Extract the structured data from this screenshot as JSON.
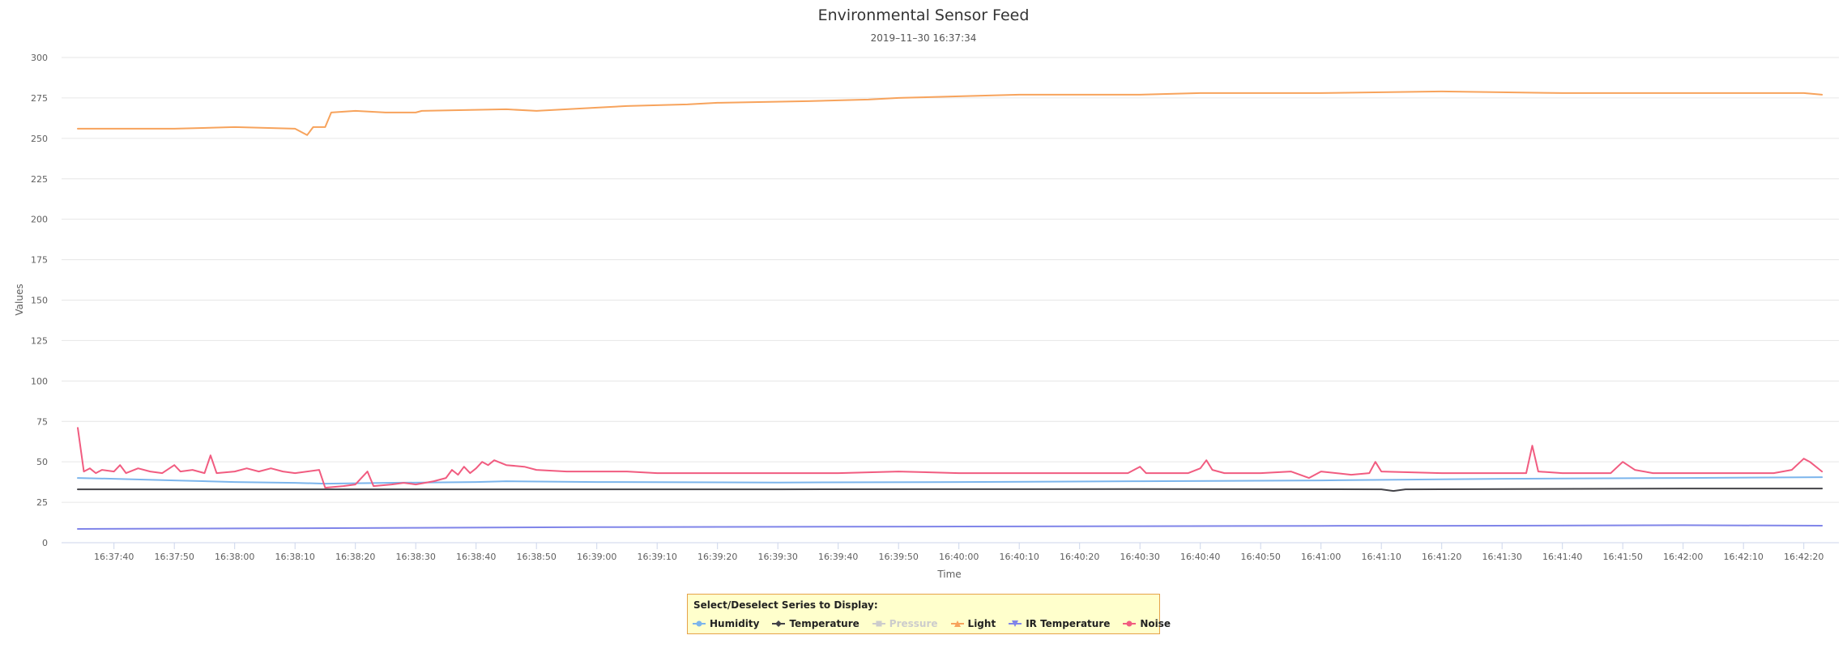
{
  "chart_data": {
    "type": "line",
    "title": "Environmental Sensor Feed",
    "subtitle": "2019–11–30 16:37:34",
    "xlabel": "Time",
    "ylabel": "Values",
    "ylim": [
      0,
      300
    ],
    "yticks": [
      0,
      25,
      50,
      75,
      100,
      125,
      150,
      175,
      200,
      225,
      250,
      275,
      300
    ],
    "xlim": [
      "16:37:34",
      "16:42:23"
    ],
    "xticks": [
      "16:37:40",
      "16:37:50",
      "16:38:00",
      "16:38:10",
      "16:38:20",
      "16:38:30",
      "16:38:40",
      "16:38:50",
      "16:39:00",
      "16:39:10",
      "16:39:20",
      "16:39:30",
      "16:39:40",
      "16:39:50",
      "16:40:00",
      "16:40:10",
      "16:40:20",
      "16:40:30",
      "16:40:40",
      "16:40:50",
      "16:41:00",
      "16:41:10",
      "16:41:20",
      "16:41:30",
      "16:41:40",
      "16:41:50",
      "16:42:00",
      "16:42:10",
      "16:42:20"
    ],
    "grid": true,
    "legend": {
      "title": "Select/Deselect Series to Display:",
      "placement": "bottom-center"
    },
    "series": [
      {
        "name": "Humidity",
        "color": "#7cb5ec",
        "marker": "circle",
        "visible": true,
        "points": [
          [
            "16:37:34",
            40
          ],
          [
            "16:37:40",
            39.5
          ],
          [
            "16:37:50",
            38.5
          ],
          [
            "16:38:00",
            37.5
          ],
          [
            "16:38:10",
            37
          ],
          [
            "16:38:15",
            36.5
          ],
          [
            "16:38:25",
            37
          ],
          [
            "16:38:40",
            37.5
          ],
          [
            "16:38:45",
            38
          ],
          [
            "16:39:00",
            37.5
          ],
          [
            "16:39:30",
            37.2
          ],
          [
            "16:40:00",
            37.5
          ],
          [
            "16:40:30",
            38
          ],
          [
            "16:41:00",
            38.5
          ],
          [
            "16:41:30",
            39.5
          ],
          [
            "16:42:00",
            40
          ],
          [
            "16:42:23",
            40.5
          ]
        ]
      },
      {
        "name": "Temperature",
        "color": "#434348",
        "marker": "diamond",
        "visible": true,
        "points": [
          [
            "16:37:34",
            33
          ],
          [
            "16:38:30",
            33
          ],
          [
            "16:39:30",
            33
          ],
          [
            "16:40:30",
            33.2
          ],
          [
            "16:41:10",
            33
          ],
          [
            "16:41:12",
            32
          ],
          [
            "16:41:14",
            33
          ],
          [
            "16:42:00",
            33.5
          ],
          [
            "16:42:23",
            33.5
          ]
        ]
      },
      {
        "name": "Pressure",
        "color": "#90ed7d",
        "marker": "square",
        "visible": false,
        "points": []
      },
      {
        "name": "Light",
        "color": "#f7a35c",
        "marker": "triangle",
        "visible": true,
        "points": [
          [
            "16:37:34",
            256
          ],
          [
            "16:37:50",
            256
          ],
          [
            "16:38:00",
            257
          ],
          [
            "16:38:10",
            256
          ],
          [
            "16:38:12",
            252
          ],
          [
            "16:38:13",
            257
          ],
          [
            "16:38:15",
            257
          ],
          [
            "16:38:16",
            266
          ],
          [
            "16:38:20",
            267
          ],
          [
            "16:38:25",
            266
          ],
          [
            "16:38:30",
            266
          ],
          [
            "16:38:31",
            267
          ],
          [
            "16:38:45",
            268
          ],
          [
            "16:38:50",
            267
          ],
          [
            "16:39:00",
            269
          ],
          [
            "16:39:05",
            270
          ],
          [
            "16:39:15",
            271
          ],
          [
            "16:39:20",
            272
          ],
          [
            "16:39:35",
            273
          ],
          [
            "16:39:45",
            274
          ],
          [
            "16:39:50",
            275
          ],
          [
            "16:40:00",
            276
          ],
          [
            "16:40:10",
            277
          ],
          [
            "16:40:30",
            277
          ],
          [
            "16:40:40",
            278
          ],
          [
            "16:41:00",
            278
          ],
          [
            "16:41:20",
            279
          ],
          [
            "16:41:40",
            278
          ],
          [
            "16:42:00",
            278
          ],
          [
            "16:42:20",
            278
          ],
          [
            "16:42:23",
            277
          ]
        ]
      },
      {
        "name": "IR Temperature",
        "color": "#8085e9",
        "marker": "triangle-down",
        "visible": true,
        "points": [
          [
            "16:37:34",
            8.5
          ],
          [
            "16:38:00",
            8.8
          ],
          [
            "16:38:30",
            9.2
          ],
          [
            "16:39:00",
            9.6
          ],
          [
            "16:39:30",
            9.8
          ],
          [
            "16:40:00",
            10
          ],
          [
            "16:40:30",
            10.2
          ],
          [
            "16:41:00",
            10.4
          ],
          [
            "16:41:30",
            10.5
          ],
          [
            "16:42:00",
            10.8
          ],
          [
            "16:42:23",
            10.5
          ]
        ]
      },
      {
        "name": "Noise",
        "color": "#f15c80",
        "marker": "circle",
        "visible": true,
        "points": [
          [
            "16:37:34",
            71
          ],
          [
            "16:37:35",
            44
          ],
          [
            "16:37:36",
            46
          ],
          [
            "16:37:37",
            43
          ],
          [
            "16:37:38",
            45
          ],
          [
            "16:37:40",
            44
          ],
          [
            "16:37:41",
            48
          ],
          [
            "16:37:42",
            43
          ],
          [
            "16:37:44",
            46
          ],
          [
            "16:37:46",
            44
          ],
          [
            "16:37:48",
            43
          ],
          [
            "16:37:50",
            48
          ],
          [
            "16:37:51",
            44
          ],
          [
            "16:37:53",
            45
          ],
          [
            "16:37:55",
            43
          ],
          [
            "16:37:56",
            54
          ],
          [
            "16:37:57",
            43
          ],
          [
            "16:38:00",
            44
          ],
          [
            "16:38:02",
            46
          ],
          [
            "16:38:04",
            44
          ],
          [
            "16:38:06",
            46
          ],
          [
            "16:38:08",
            44
          ],
          [
            "16:38:10",
            43
          ],
          [
            "16:38:14",
            45
          ],
          [
            "16:38:15",
            34
          ],
          [
            "16:38:18",
            35
          ],
          [
            "16:38:20",
            36
          ],
          [
            "16:38:22",
            44
          ],
          [
            "16:38:23",
            35
          ],
          [
            "16:38:26",
            36
          ],
          [
            "16:38:28",
            37
          ],
          [
            "16:38:30",
            36
          ],
          [
            "16:38:33",
            38
          ],
          [
            "16:38:35",
            40
          ],
          [
            "16:38:36",
            45
          ],
          [
            "16:38:37",
            42
          ],
          [
            "16:38:38",
            47
          ],
          [
            "16:38:39",
            43
          ],
          [
            "16:38:40",
            46
          ],
          [
            "16:38:41",
            50
          ],
          [
            "16:38:42",
            48
          ],
          [
            "16:38:43",
            51
          ],
          [
            "16:38:45",
            48
          ],
          [
            "16:38:48",
            47
          ],
          [
            "16:38:50",
            45
          ],
          [
            "16:38:55",
            44
          ],
          [
            "16:39:00",
            44
          ],
          [
            "16:39:05",
            44
          ],
          [
            "16:39:10",
            43
          ],
          [
            "16:39:20",
            43
          ],
          [
            "16:39:30",
            43
          ],
          [
            "16:39:40",
            43
          ],
          [
            "16:39:50",
            44
          ],
          [
            "16:40:00",
            43
          ],
          [
            "16:40:10",
            43
          ],
          [
            "16:40:20",
            43
          ],
          [
            "16:40:28",
            43
          ],
          [
            "16:40:30",
            47
          ],
          [
            "16:40:31",
            43
          ],
          [
            "16:40:38",
            43
          ],
          [
            "16:40:40",
            46
          ],
          [
            "16:40:41",
            51
          ],
          [
            "16:40:42",
            45
          ],
          [
            "16:40:44",
            43
          ],
          [
            "16:40:50",
            43
          ],
          [
            "16:40:55",
            44
          ],
          [
            "16:40:58",
            40
          ],
          [
            "16:41:00",
            44
          ],
          [
            "16:41:05",
            42
          ],
          [
            "16:41:08",
            43
          ],
          [
            "16:41:09",
            50
          ],
          [
            "16:41:10",
            44
          ],
          [
            "16:41:20",
            43
          ],
          [
            "16:41:30",
            43
          ],
          [
            "16:41:34",
            43
          ],
          [
            "16:41:35",
            60
          ],
          [
            "16:41:36",
            44
          ],
          [
            "16:41:40",
            43
          ],
          [
            "16:41:48",
            43
          ],
          [
            "16:41:50",
            50
          ],
          [
            "16:41:52",
            45
          ],
          [
            "16:41:55",
            43
          ],
          [
            "16:42:00",
            43
          ],
          [
            "16:42:10",
            43
          ],
          [
            "16:42:15",
            43
          ],
          [
            "16:42:18",
            45
          ],
          [
            "16:42:20",
            52
          ],
          [
            "16:42:21",
            50
          ],
          [
            "16:42:23",
            44
          ]
        ]
      }
    ]
  }
}
